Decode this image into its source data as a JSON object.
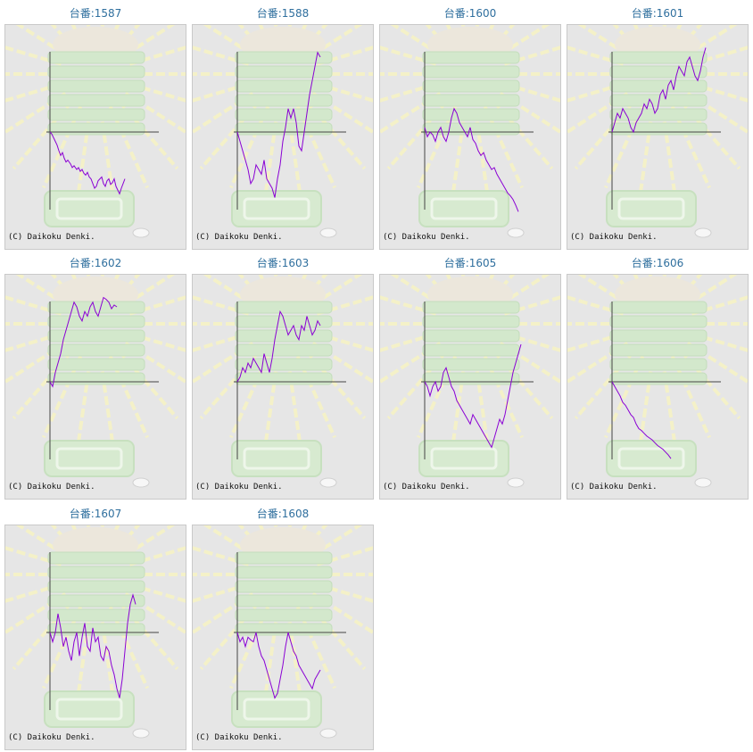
{
  "graph_label_prefix": "台番:",
  "copyright": "(C) Daikoku Denki.",
  "line_color": "#8a00d4",
  "chart_data": [
    {
      "type": "line",
      "title": "台番:1587",
      "x": [
        0,
        2,
        5,
        8,
        10,
        12,
        14,
        16,
        18,
        20,
        23,
        25,
        27,
        30,
        32,
        34,
        36,
        38,
        40,
        42,
        44,
        46,
        48,
        50,
        52,
        54,
        56,
        58,
        60,
        62,
        64,
        66,
        68,
        70,
        72,
        74,
        76,
        78,
        80,
        82,
        84
      ],
      "values": [
        0,
        -2,
        -8,
        -14,
        -20,
        -25,
        -22,
        -28,
        -32,
        -30,
        -34,
        -38,
        -36,
        -40,
        -38,
        -42,
        -40,
        -44,
        -46,
        -43,
        -48,
        -50,
        -55,
        -60,
        -58,
        -52,
        -50,
        -48,
        -55,
        -58,
        -52,
        -50,
        -56,
        -54,
        -50,
        -58,
        -62,
        -66,
        -60,
        -55,
        -50
      ]
    },
    {
      "type": "line",
      "title": "台番:1588",
      "x": [
        0,
        3,
        6,
        9,
        12,
        15,
        18,
        21,
        24,
        27,
        30,
        33,
        36,
        39,
        42,
        45,
        48,
        51,
        54,
        57,
        60,
        63,
        66,
        69,
        72,
        75,
        78,
        81,
        84,
        87,
        90,
        93
      ],
      "values": [
        0,
        -10,
        -20,
        -30,
        -40,
        -55,
        -50,
        -35,
        -40,
        -45,
        -30,
        -50,
        -55,
        -60,
        -70,
        -50,
        -35,
        -10,
        5,
        25,
        15,
        25,
        10,
        -15,
        -20,
        0,
        20,
        40,
        55,
        70,
        85,
        80
      ]
    },
    {
      "type": "line",
      "title": "台番:1600",
      "x": [
        0,
        3,
        6,
        9,
        12,
        15,
        18,
        21,
        24,
        27,
        30,
        33,
        36,
        39,
        42,
        45,
        48,
        51,
        54,
        57,
        60,
        63,
        66,
        69,
        72,
        75,
        78,
        81,
        84,
        87,
        90,
        93,
        96,
        99,
        102,
        105
      ],
      "values": [
        5,
        -5,
        0,
        -3,
        -10,
        0,
        5,
        -5,
        -10,
        0,
        15,
        25,
        20,
        10,
        5,
        0,
        -5,
        5,
        -8,
        -12,
        -20,
        -25,
        -22,
        -30,
        -35,
        -40,
        -38,
        -45,
        -50,
        -55,
        -60,
        -65,
        -68,
        -72,
        -78,
        -85
      ]
    },
    {
      "type": "line",
      "title": "台番:1601",
      "x": [
        0,
        3,
        6,
        9,
        12,
        15,
        18,
        21,
        24,
        27,
        30,
        33,
        36,
        39,
        42,
        45,
        48,
        51,
        54,
        57,
        60,
        63,
        66,
        69,
        72,
        75,
        78,
        81,
        84,
        87,
        90,
        93,
        96,
        99,
        102,
        105
      ],
      "values": [
        0,
        10,
        20,
        15,
        25,
        20,
        15,
        5,
        0,
        10,
        15,
        20,
        30,
        25,
        35,
        30,
        20,
        25,
        40,
        45,
        35,
        50,
        55,
        45,
        60,
        70,
        65,
        60,
        75,
        80,
        70,
        60,
        55,
        65,
        80,
        90
      ]
    },
    {
      "type": "line",
      "title": "台番:1602",
      "x": [
        0,
        3,
        6,
        9,
        12,
        15,
        18,
        21,
        24,
        27,
        30,
        33,
        36,
        39,
        42,
        45,
        48,
        51,
        54,
        57,
        60,
        63,
        66,
        69,
        72,
        75
      ],
      "values": [
        0,
        -5,
        10,
        20,
        30,
        45,
        55,
        65,
        75,
        85,
        80,
        70,
        65,
        75,
        70,
        80,
        85,
        75,
        70,
        80,
        90,
        88,
        85,
        78,
        82,
        80
      ]
    },
    {
      "type": "line",
      "title": "台番:1603",
      "x": [
        0,
        3,
        6,
        9,
        12,
        15,
        18,
        21,
        24,
        27,
        30,
        33,
        36,
        39,
        42,
        45,
        48,
        51,
        54,
        57,
        60,
        63,
        66,
        69,
        72,
        75,
        78,
        81,
        84,
        87,
        90,
        93
      ],
      "values": [
        0,
        5,
        15,
        10,
        20,
        15,
        25,
        20,
        15,
        10,
        30,
        20,
        10,
        25,
        45,
        60,
        75,
        70,
        60,
        50,
        55,
        60,
        50,
        45,
        60,
        55,
        70,
        60,
        50,
        55,
        65,
        60
      ]
    },
    {
      "type": "line",
      "title": "台番:1605",
      "x": [
        0,
        3,
        6,
        9,
        12,
        15,
        18,
        21,
        24,
        27,
        30,
        33,
        36,
        39,
        42,
        45,
        48,
        51,
        54,
        57,
        60,
        63,
        66,
        69,
        72,
        75,
        78,
        81,
        84,
        87,
        90,
        93,
        96,
        99,
        102,
        105,
        108
      ],
      "values": [
        0,
        -5,
        -15,
        -5,
        0,
        -10,
        -5,
        10,
        15,
        5,
        -5,
        -10,
        -20,
        -25,
        -30,
        -35,
        -40,
        -45,
        -35,
        -40,
        -45,
        -50,
        -55,
        -60,
        -65,
        -70,
        -60,
        -50,
        -40,
        -45,
        -35,
        -20,
        -5,
        10,
        20,
        30,
        40
      ]
    },
    {
      "type": "line",
      "title": "台番:1606",
      "x": [
        0,
        3,
        6,
        9,
        12,
        15,
        18,
        21,
        24,
        27,
        30,
        33,
        36,
        39,
        42,
        45,
        48,
        51,
        54,
        57,
        60,
        63,
        66
      ],
      "values": [
        0,
        -5,
        -10,
        -15,
        -22,
        -25,
        -30,
        -35,
        -38,
        -45,
        -50,
        -52,
        -55,
        -58,
        -60,
        -62,
        -65,
        -68,
        -70,
        -72,
        -75,
        -78,
        -82
      ]
    },
    {
      "type": "line",
      "title": "台番:1607",
      "x": [
        0,
        3,
        6,
        9,
        12,
        15,
        18,
        21,
        24,
        27,
        30,
        33,
        36,
        39,
        42,
        45,
        48,
        51,
        54,
        57,
        60,
        63,
        66,
        69,
        72,
        75,
        78,
        81,
        84,
        87,
        90,
        93,
        96
      ],
      "values": [
        0,
        -10,
        0,
        20,
        5,
        -15,
        -5,
        -20,
        -30,
        -10,
        0,
        -25,
        -5,
        10,
        -15,
        -20,
        5,
        -10,
        -5,
        -25,
        -30,
        -15,
        -20,
        -35,
        -45,
        -60,
        -70,
        -50,
        -20,
        10,
        30,
        40,
        30
      ]
    },
    {
      "type": "line",
      "title": "台番:1608",
      "x": [
        0,
        3,
        6,
        9,
        12,
        15,
        18,
        21,
        24,
        27,
        30,
        33,
        36,
        39,
        42,
        45,
        48,
        51,
        54,
        57,
        60,
        63,
        66,
        69,
        72,
        75,
        78,
        81,
        84,
        87,
        90,
        93
      ],
      "values": [
        0,
        -10,
        -5,
        -15,
        -5,
        -8,
        -10,
        0,
        -15,
        -25,
        -30,
        -40,
        -50,
        -60,
        -70,
        -65,
        -50,
        -35,
        -15,
        0,
        -10,
        -20,
        -25,
        -35,
        -40,
        -45,
        -50,
        -55,
        -60,
        -50,
        -45,
        -40
      ]
    }
  ]
}
